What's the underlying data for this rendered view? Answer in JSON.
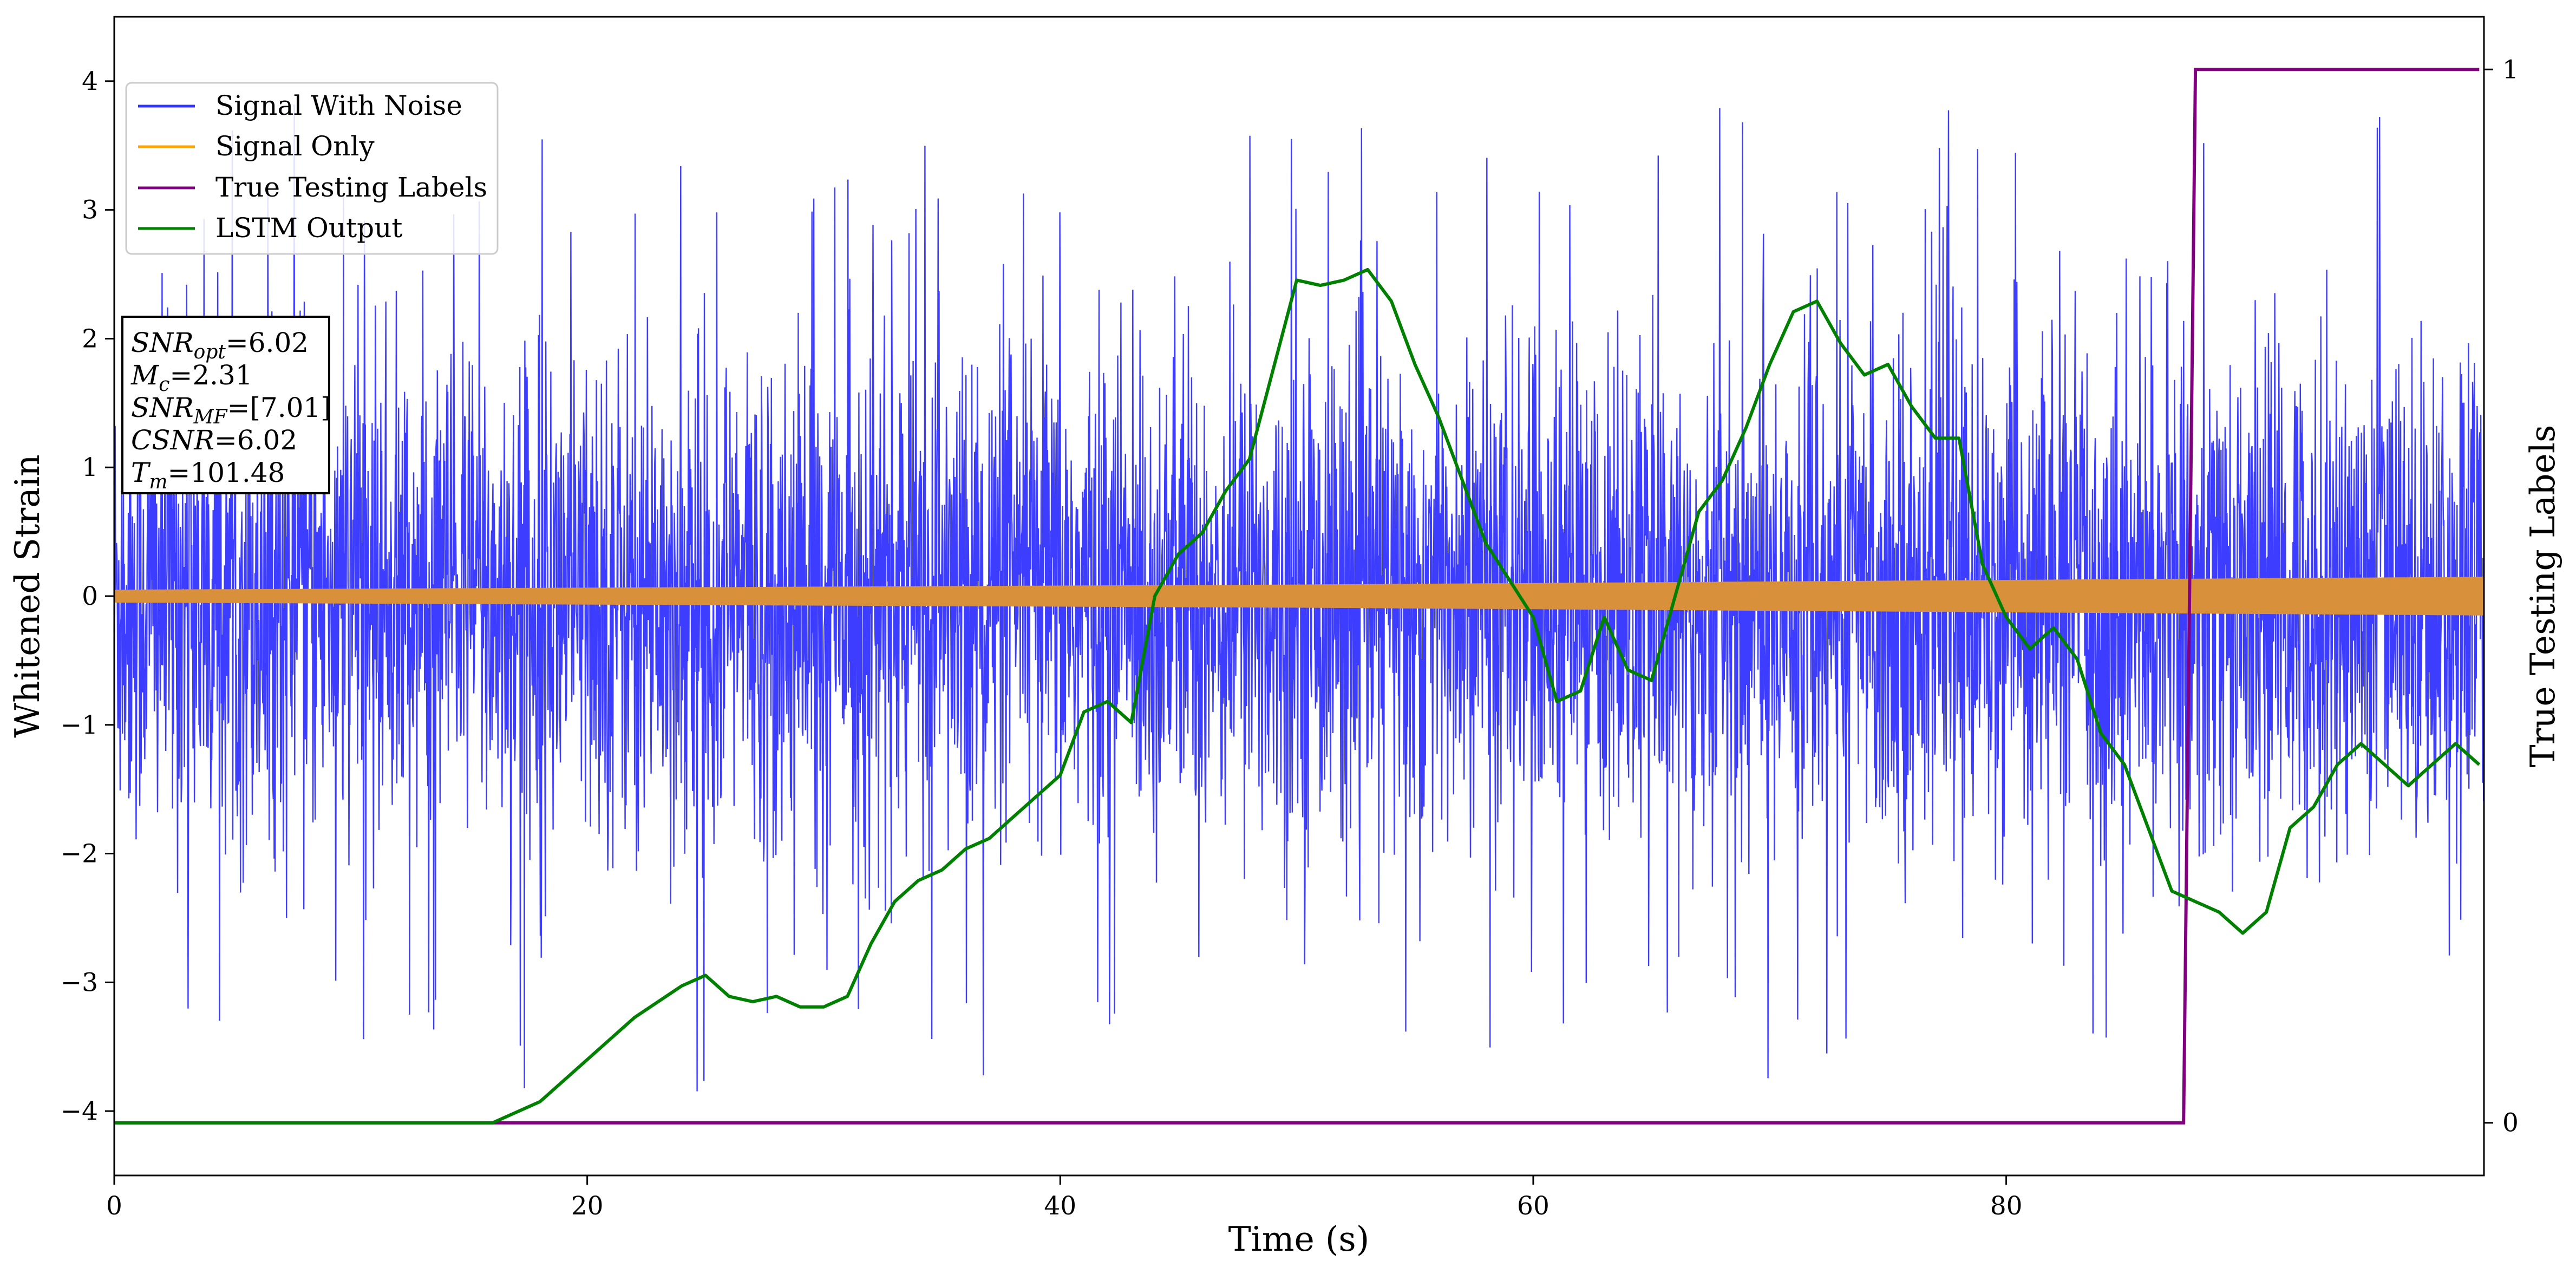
{
  "chart_data": {
    "type": "line",
    "xlabel": "Time (s)",
    "ylabel": "Whitened Strain",
    "y2label": "True Testing Labels",
    "xlim": [
      0,
      100.2
    ],
    "ylim": [
      -4.5,
      4.5
    ],
    "y2lim": [
      -0.05,
      1.05
    ],
    "xticks": [
      0,
      20,
      40,
      60,
      80
    ],
    "yticks": [
      -4,
      -3,
      -2,
      -1,
      0,
      1,
      2,
      3,
      4
    ],
    "y2ticks": [
      0,
      1
    ],
    "xtick_labels": [
      "0",
      "20",
      "40",
      "60",
      "80"
    ],
    "ytick_labels": [
      "−4",
      "−3",
      "−2",
      "−1",
      "0",
      "1",
      "2",
      "3",
      "4"
    ],
    "y2tick_labels": [
      "0",
      "1"
    ],
    "grid": false,
    "legend_position": "top-left",
    "series": [
      {
        "name": "Signal With Noise",
        "color": "#3333ff",
        "axis": "left",
        "noise_envelope": {
          "typical_amplitude": 1.0,
          "approx_peak_min": -4.05,
          "approx_peak_max": 3.9
        }
      },
      {
        "name": "Signal Only",
        "color": "#ffa500",
        "axis": "left",
        "amplitude_envelope": {
          "x": [
            0,
            50,
            100
          ],
          "amplitude": [
            0.05,
            0.09,
            0.15
          ]
        }
      },
      {
        "name": "True Testing Labels",
        "color": "#800080",
        "axis": "right",
        "x": [
          0,
          87.5,
          88.0,
          100
        ],
        "y": [
          0,
          0,
          1,
          1
        ]
      },
      {
        "name": "LSTM Output",
        "color": "#008000",
        "axis": "right",
        "x": [
          0,
          16,
          18,
          20,
          22,
          24,
          25,
          26,
          27,
          28,
          29,
          30,
          31,
          32,
          33,
          34,
          35,
          36,
          37,
          38,
          40,
          41,
          42,
          43,
          44,
          45,
          46,
          47,
          48,
          50,
          51,
          52,
          53,
          54,
          55,
          56,
          58,
          60,
          61,
          62,
          63,
          64,
          65,
          66,
          67,
          68,
          69,
          70,
          71,
          72,
          73,
          74,
          75,
          76,
          77,
          78,
          79,
          80,
          81,
          82,
          83,
          84,
          85,
          86,
          87,
          88,
          89,
          90,
          91,
          92,
          93,
          94,
          95,
          96,
          97,
          98,
          99,
          100
        ],
        "y": [
          0,
          0,
          0.02,
          0.06,
          0.1,
          0.13,
          0.14,
          0.12,
          0.115,
          0.12,
          0.11,
          0.11,
          0.12,
          0.17,
          0.21,
          0.23,
          0.24,
          0.26,
          0.27,
          0.29,
          0.33,
          0.39,
          0.4,
          0.38,
          0.5,
          0.54,
          0.56,
          0.6,
          0.63,
          0.8,
          0.795,
          0.8,
          0.81,
          0.78,
          0.72,
          0.67,
          0.55,
          0.48,
          0.4,
          0.41,
          0.48,
          0.43,
          0.42,
          0.5,
          0.58,
          0.61,
          0.66,
          0.72,
          0.77,
          0.78,
          0.74,
          0.71,
          0.72,
          0.68,
          0.65,
          0.65,
          0.53,
          0.48,
          0.45,
          0.47,
          0.44,
          0.37,
          0.34,
          0.28,
          0.22,
          0.21,
          0.2,
          0.18,
          0.2,
          0.28,
          0.3,
          0.34,
          0.36,
          0.34,
          0.32,
          0.34,
          0.36,
          0.34
        ]
      }
    ],
    "annotation_lines": [
      {
        "name": "SNR",
        "sub": "opt",
        "value": "=6.02"
      },
      {
        "name": "M",
        "sub": "c",
        "value": "=2.31"
      },
      {
        "name": "SNR",
        "sub": "MF",
        "value": "=[7.01]"
      },
      {
        "name": "CSNR",
        "sub": "",
        "value": "=6.02"
      },
      {
        "name": "T",
        "sub": "m",
        "value": "=101.48"
      }
    ]
  }
}
